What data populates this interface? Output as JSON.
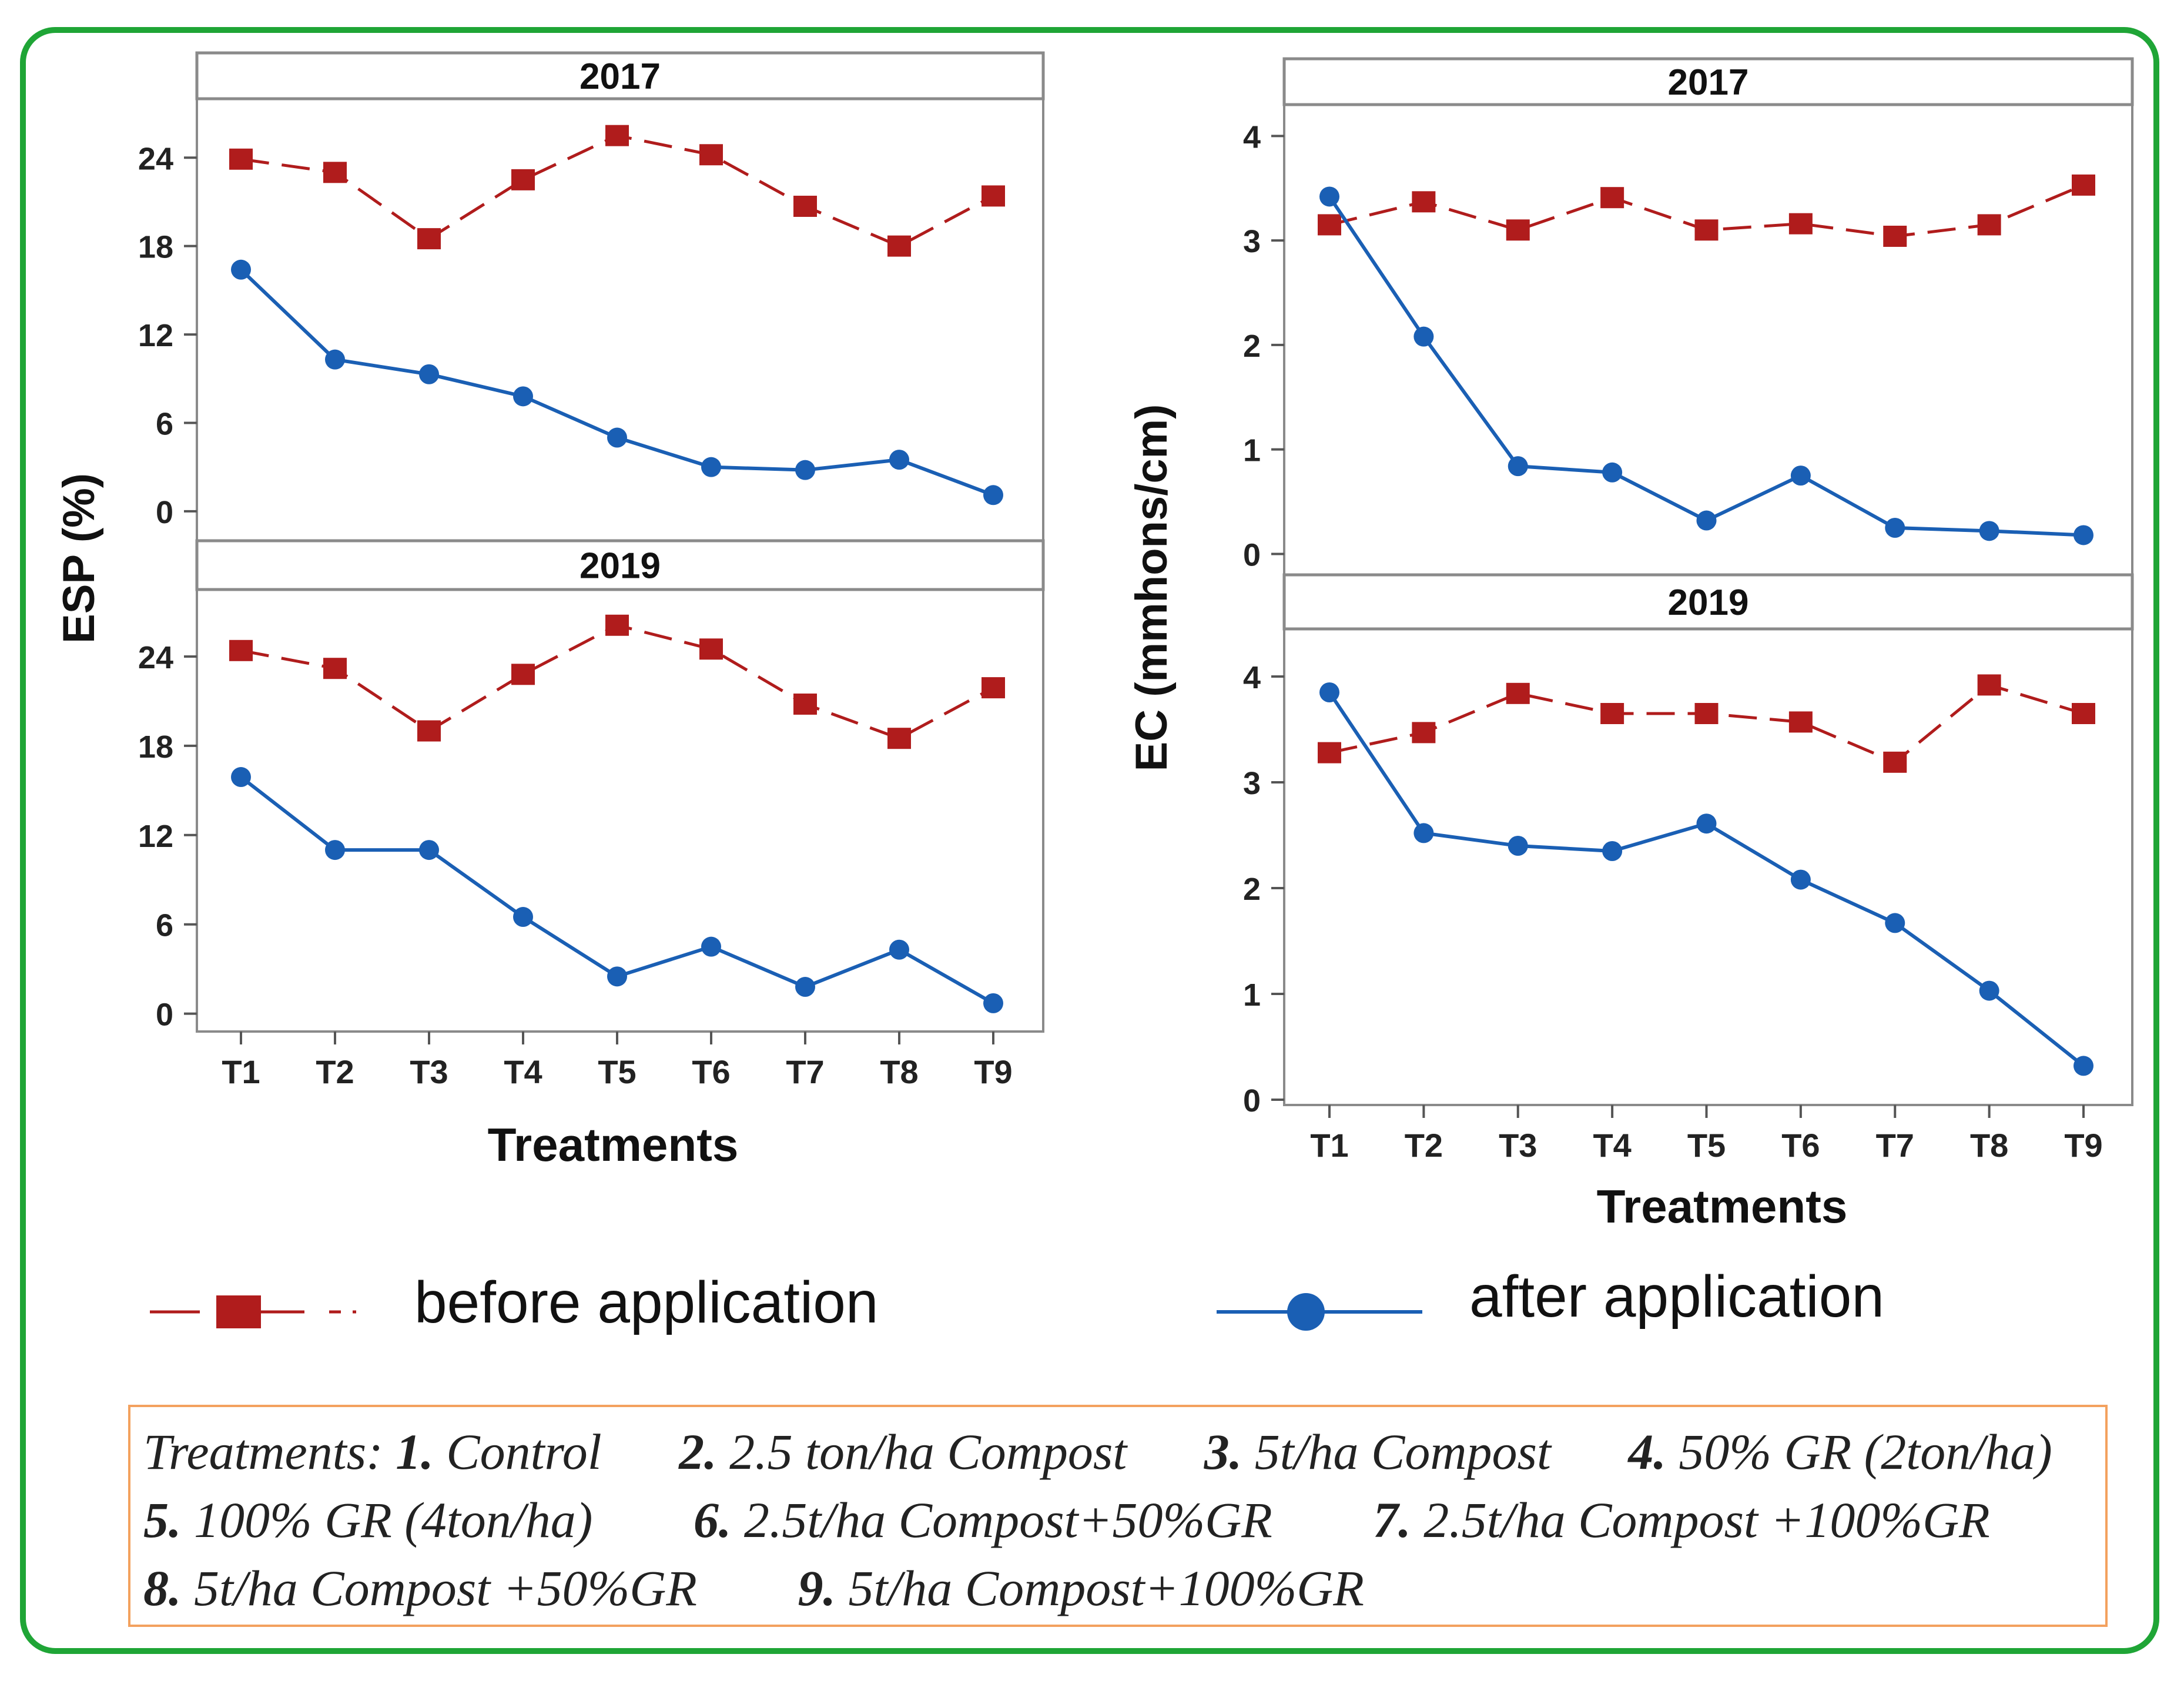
{
  "chart_data": [
    {
      "type": "line",
      "panel": "ESP 2017",
      "title": "2017",
      "ylabel": "ESP (%)",
      "xlabel": "Treatments",
      "categories": [
        "T1",
        "T2",
        "T3",
        "T4",
        "T5",
        "T6",
        "T7",
        "T8",
        "T9"
      ],
      "ylim": [
        -2,
        28
      ],
      "yticks": [
        0,
        6,
        12,
        18,
        24
      ],
      "series": [
        {
          "name": "before application",
          "values": [
            23.9,
            23.0,
            18.5,
            22.5,
            25.5,
            24.2,
            20.7,
            18.0,
            21.4
          ]
        },
        {
          "name": "after application",
          "values": [
            16.4,
            10.3,
            9.3,
            7.8,
            5.0,
            3.0,
            2.8,
            3.5,
            1.1
          ]
        }
      ]
    },
    {
      "type": "line",
      "panel": "ESP 2019",
      "title": "2019",
      "ylabel": "ESP (%)",
      "xlabel": "Treatments",
      "categories": [
        "T1",
        "T2",
        "T3",
        "T4",
        "T5",
        "T6",
        "T7",
        "T8",
        "T9"
      ],
      "ylim": [
        -1.2,
        28.5
      ],
      "yticks": [
        0,
        6,
        12,
        18,
        24
      ],
      "series": [
        {
          "name": "before application",
          "values": [
            24.4,
            23.2,
            19.0,
            22.8,
            26.1,
            24.5,
            20.8,
            18.5,
            21.9
          ]
        },
        {
          "name": "after application",
          "values": [
            15.9,
            11.0,
            11.0,
            6.5,
            2.5,
            4.5,
            1.8,
            4.3,
            0.7
          ]
        }
      ]
    },
    {
      "type": "line",
      "panel": "EC 2017",
      "title": "2017",
      "ylabel": "EC (mmhons/cm)",
      "xlabel": "Treatments",
      "categories": [
        "T1",
        "T2",
        "T3",
        "T4",
        "T5",
        "T6",
        "T7",
        "T8",
        "T9"
      ],
      "ylim": [
        -0.2,
        4.3
      ],
      "yticks": [
        0,
        1,
        2,
        3,
        4
      ],
      "series": [
        {
          "name": "before application",
          "values": [
            3.15,
            3.37,
            3.1,
            3.41,
            3.1,
            3.16,
            3.04,
            3.15,
            3.53
          ]
        },
        {
          "name": "after application",
          "values": [
            3.42,
            2.08,
            0.84,
            0.78,
            0.32,
            0.75,
            0.25,
            0.22,
            0.18
          ]
        }
      ]
    },
    {
      "type": "line",
      "panel": "EC 2019",
      "title": "2019",
      "ylabel": "EC (mmhons/cm)",
      "xlabel": "Treatments",
      "categories": [
        "T1",
        "T2",
        "T3",
        "T4",
        "T5",
        "T6",
        "T7",
        "T8",
        "T9"
      ],
      "ylim": [
        -0.05,
        4.45
      ],
      "yticks": [
        0,
        1,
        2,
        3,
        4
      ],
      "series": [
        {
          "name": "before application",
          "values": [
            3.28,
            3.47,
            3.84,
            3.65,
            3.65,
            3.57,
            3.19,
            3.92,
            3.65
          ]
        },
        {
          "name": "after application",
          "values": [
            3.85,
            2.52,
            2.4,
            2.35,
            2.61,
            2.08,
            1.67,
            1.03,
            0.32
          ]
        }
      ]
    }
  ],
  "colors": {
    "before": "#b01c1c",
    "after": "#1a5fb4",
    "frame": "#1fa536",
    "box_border": "#f3a15e"
  },
  "legend": {
    "before_label": "before application",
    "after_label": "after application"
  },
  "axes": {
    "left_ylabel": "ESP (%)",
    "right_ylabel": "EC (mmhons/cm)",
    "left_xlabel": "Treatments",
    "right_xlabel": "Treatments",
    "strip_top": "2017",
    "strip_bottom": "2019"
  },
  "treatments_box": {
    "intro": "Treatments:",
    "items": [
      {
        "num": "1.",
        "text": "Control"
      },
      {
        "num": "2.",
        "text": "2.5 ton/ha Compost"
      },
      {
        "num": "3.",
        "text": "5t/ha Compost"
      },
      {
        "num": "4.",
        "text": "50% GR (2ton/ha)"
      },
      {
        "num": "5.",
        "text": "100% GR (4ton/ha)"
      },
      {
        "num": "6.",
        "text": "2.5t/ha Compost+50%GR"
      },
      {
        "num": "7.",
        "text": "2.5t/ha Compost +100%GR"
      },
      {
        "num": "8.",
        "text": "5t/ha Compost +50%GR"
      },
      {
        "num": "9.",
        "text": "5t/ha Compost+100%GR"
      }
    ]
  }
}
